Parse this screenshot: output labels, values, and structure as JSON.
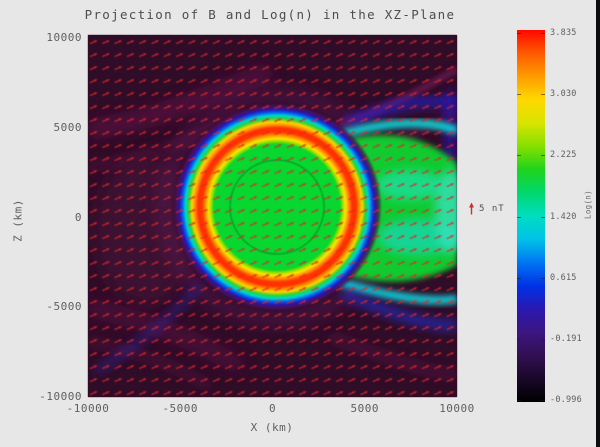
{
  "chart_data": {
    "type": "heatmap",
    "title": "Projection of B and Log(n) in the XZ-Plane",
    "xlabel": "X (km)",
    "ylabel": "Z (km)",
    "xlim": [
      -10000,
      10000
    ],
    "zlim": [
      -10000,
      10000
    ],
    "x_ticks": [
      "-10000",
      "-5000",
      "0",
      "5000",
      "10000"
    ],
    "z_ticks": [
      "10000",
      "5000",
      "0",
      "-5000",
      "-10000"
    ],
    "grid": false,
    "colorbar": {
      "label": "Log(n)",
      "min": -0.996,
      "max": 3.835,
      "ticks": [
        "3.835",
        "3.030",
        "2.225",
        "1.420",
        "0.615",
        "-0.191",
        "-0.996"
      ],
      "colors_top_to_bottom": [
        "#ff0800",
        "#ff5a00",
        "#ff9c00",
        "#ffd800",
        "#d8e400",
        "#86df00",
        "#1ed31c",
        "#00d86e",
        "#00ddc0",
        "#00c2e8",
        "#0076f2",
        "#0032e6",
        "#2a18b0",
        "#3c1680",
        "#320f52",
        "#190829",
        "#000000"
      ],
      "position": "right"
    },
    "vector_field": {
      "quantity": "B",
      "legend_label": "5 nT",
      "arrow_color": "#d42a2a",
      "direction": "mostly +X (flow past obstacle)"
    },
    "features": {
      "background_log_n_color": "#2e0c26",
      "planet_disk_color": "#0fd433",
      "pileup_ring_colors": [
        "#ffe400",
        "#ff8a00",
        "#ff3300"
      ],
      "wake_color": "#14cf36",
      "wake_boundary_colors": [
        "#00d8d0",
        "#2028d0"
      ],
      "description": "Dark purple upstream plasma with red B-field arrows; green planetary ionosphere disk outlined by a thin circle; red-orange density pile-up ring; green wake with cyan/blue boundary layers extending in +X"
    }
  }
}
